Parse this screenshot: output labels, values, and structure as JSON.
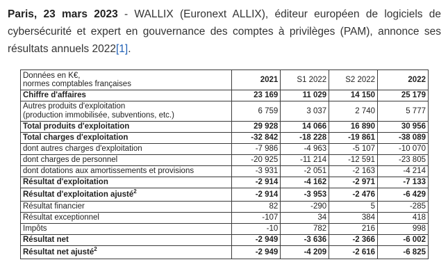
{
  "intro": {
    "bold": "Paris, 23 mars 2023",
    "text": " - WALLIX (Euronext ALLIX), éditeur européen de logiciels de cybersécurité et expert en gouvernance des comptes à privilèges (PAM), annonce ses résultats annuels 2022",
    "ref": "[1]",
    "end": "."
  },
  "table": {
    "header": {
      "label_line1": "Données en K€,",
      "label_line2": "normes comptables françaises",
      "col_2021": "2021",
      "col_s1_2022": "S1 2022",
      "col_s2_2022": "S2 2022",
      "col_2022": "2022"
    },
    "rows": [
      {
        "label": "Chiffre d'affaires",
        "v": [
          "23 169",
          "11 029",
          "14 150",
          "25 179"
        ]
      },
      {
        "label": "Autres produits d'exploitation",
        "label2": "(production immobilisée, subventions, etc.)",
        "v": [
          "6 759",
          "3 037",
          "2 740",
          "5 777"
        ]
      },
      {
        "label": "Total produits d'exploitation",
        "v": [
          "29 928",
          "14 066",
          "16 890",
          "30 956"
        ]
      },
      {
        "label": "Total charges d'exploitation",
        "v": [
          "-32 842",
          "-18 228",
          "-19 861",
          "-38 089"
        ]
      },
      {
        "label": "dont autres charges d'exploitation",
        "v": [
          "-7 986",
          "-4 963",
          "-5 107",
          "-10 070"
        ]
      },
      {
        "label": "dont charges de personnel",
        "v": [
          "-20 925",
          "-11 214",
          "-12 591",
          "-23 805"
        ]
      },
      {
        "label": "dont dotations aux amortissements et provisions",
        "v": [
          "-3 931",
          "-2 051",
          "-2 163",
          "-4 214"
        ]
      },
      {
        "label": "Résultat d'exploitation",
        "v": [
          "-2 914",
          "-4 162",
          "-2 971",
          "-7 133"
        ]
      },
      {
        "label": "Résultat d'exploitation ajusté",
        "sup": "2",
        "v": [
          "-2 914",
          "-3 953",
          "-2 476",
          "-6 429"
        ]
      },
      {
        "label": "Résultat financier",
        "v": [
          "82",
          "-290",
          "5",
          "-285"
        ]
      },
      {
        "label": "Résultat exceptionnel",
        "v": [
          "-107",
          "34",
          "384",
          "418"
        ]
      },
      {
        "label": "Impôts",
        "v": [
          "-10",
          "782",
          "216",
          "998"
        ]
      },
      {
        "label": "Résultat net",
        "v": [
          "-2 949",
          "-3 636",
          "-2 366",
          "-6 002"
        ]
      },
      {
        "label": "Résultat net ajusté",
        "sup": "2",
        "v": [
          "-2 949",
          "-4 209",
          "-2 616",
          "-6 825"
        ]
      }
    ]
  }
}
